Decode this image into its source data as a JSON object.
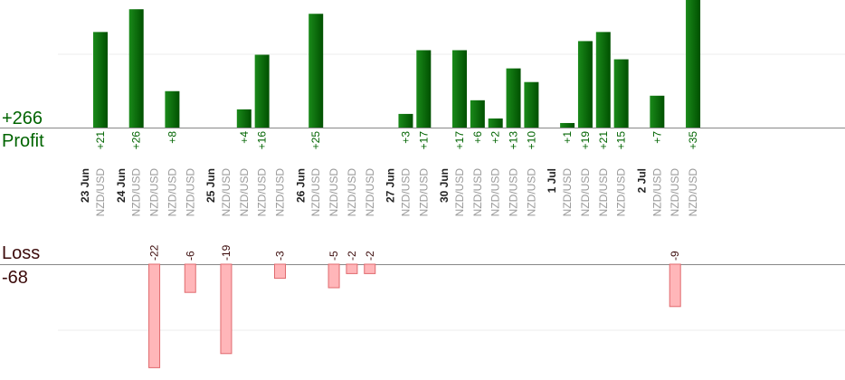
{
  "summary": {
    "profit_total": "+266",
    "profit_label": "Profit",
    "loss_label": "Loss",
    "loss_total": "-68"
  },
  "colors": {
    "profit_bar_dark": "#005000",
    "profit_bar_light": "#1a8a1a",
    "profit_text": "#006400",
    "loss_bar_fill": "#ffb6b9",
    "loss_bar_stroke": "#e06a6e",
    "loss_text": "#3b0a0a",
    "axis_line": "#888888",
    "grid_line": "#ececec",
    "pair_text": "#999999",
    "date_text": "#222222"
  },
  "chart_data": {
    "type": "bar",
    "title": "",
    "profit_axis_visible_max": 33,
    "loss_axis_visible_max": 22,
    "dates": [
      "23 Jun",
      "24 Jun",
      "25 Jun",
      "26 Jun",
      "27 Jun",
      "30 Jun",
      "1 Jul",
      "2 Jul"
    ],
    "trades": [
      {
        "date": "23 Jun",
        "pair": "NZD/USD",
        "value": 21,
        "label": "+21"
      },
      {
        "date": "24 Jun",
        "pair": "NZD/USD",
        "value": 26,
        "label": "+26"
      },
      {
        "date": "24 Jun",
        "pair": "NZD/USD",
        "value": -22,
        "label": "-22"
      },
      {
        "date": "24 Jun",
        "pair": "NZD/USD",
        "value": 8,
        "label": "+8"
      },
      {
        "date": "24 Jun",
        "pair": "NZD/USD",
        "value": -6,
        "label": "-6"
      },
      {
        "date": "25 Jun",
        "pair": "NZD/USD",
        "value": -19,
        "label": "-19"
      },
      {
        "date": "25 Jun",
        "pair": "NZD/USD",
        "value": 4,
        "label": "+4"
      },
      {
        "date": "25 Jun",
        "pair": "NZD/USD",
        "value": 16,
        "label": "+16"
      },
      {
        "date": "25 Jun",
        "pair": "NZD/USD",
        "value": -3,
        "label": "-3"
      },
      {
        "date": "26 Jun",
        "pair": "NZD/USD",
        "value": 25,
        "label": "+25"
      },
      {
        "date": "26 Jun",
        "pair": "NZD/USD",
        "value": -5,
        "label": "-5"
      },
      {
        "date": "26 Jun",
        "pair": "NZD/USD",
        "value": -2,
        "label": "-2"
      },
      {
        "date": "26 Jun",
        "pair": "NZD/USD",
        "value": -2,
        "label": "-2"
      },
      {
        "date": "27 Jun",
        "pair": "NZD/USD",
        "value": 3,
        "label": "+3"
      },
      {
        "date": "27 Jun",
        "pair": "NZD/USD",
        "value": 17,
        "label": "+17"
      },
      {
        "date": "30 Jun",
        "pair": "NZD/USD",
        "value": 17,
        "label": "+17"
      },
      {
        "date": "30 Jun",
        "pair": "NZD/USD",
        "value": 6,
        "label": "+6"
      },
      {
        "date": "30 Jun",
        "pair": "NZD/USD",
        "value": 2,
        "label": "+2"
      },
      {
        "date": "30 Jun",
        "pair": "NZD/USD",
        "value": 13,
        "label": "+13"
      },
      {
        "date": "30 Jun",
        "pair": "NZD/USD",
        "value": 10,
        "label": "+10"
      },
      {
        "date": "1 Jul",
        "pair": "NZD/USD",
        "value": 1,
        "label": "+1"
      },
      {
        "date": "1 Jul",
        "pair": "NZD/USD",
        "value": 19,
        "label": "+19"
      },
      {
        "date": "1 Jul",
        "pair": "NZD/USD",
        "value": 21,
        "label": "+21"
      },
      {
        "date": "1 Jul",
        "pair": "NZD/USD",
        "value": 15,
        "label": "+15"
      },
      {
        "date": "2 Jul",
        "pair": "NZD/USD",
        "value": 7,
        "label": "+7"
      },
      {
        "date": "2 Jul",
        "pair": "NZD/USD",
        "value": -9,
        "label": "-9"
      },
      {
        "date": "2 Jul",
        "pair": "NZD/USD",
        "value": 35,
        "label": "+35"
      }
    ]
  }
}
